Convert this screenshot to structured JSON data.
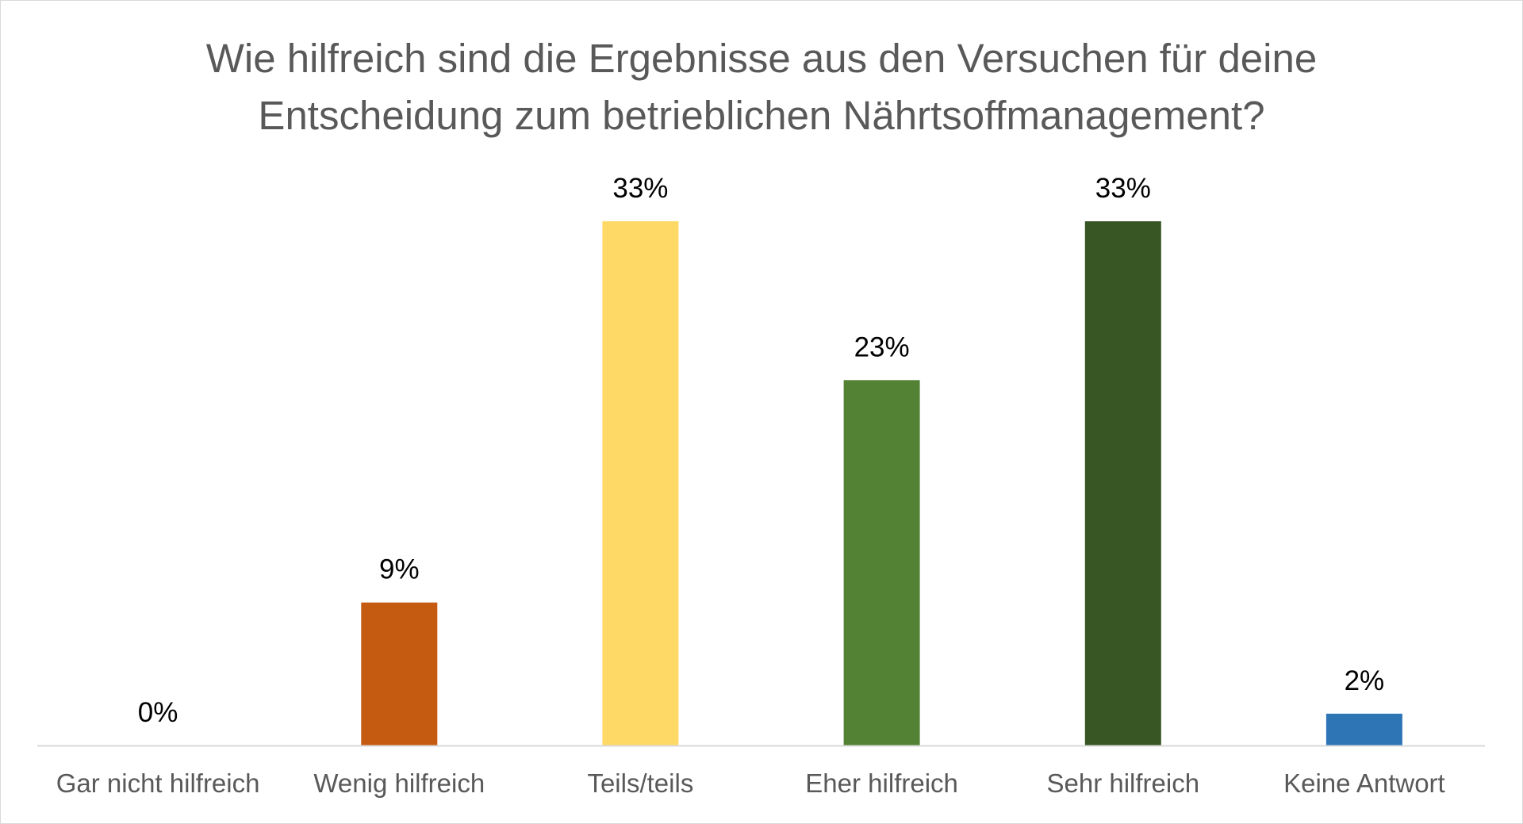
{
  "chart_data": {
    "type": "bar",
    "title_lines": [
      "Wie hilfreich sind die Ergebnisse aus den Versuchen für deine",
      "Entscheidung zum betrieblichen Nährtsoffmanagement?"
    ],
    "categories": [
      "Gar nicht hilfreich",
      "Wenig hilfreich",
      "Teils/teils",
      "Eher hilfreich",
      "Sehr hilfreich",
      "Keine Antwort"
    ],
    "values": [
      0,
      9,
      33,
      23,
      33,
      2
    ],
    "data_labels": [
      "0%",
      "9%",
      "33%",
      "23%",
      "33%",
      "2%"
    ],
    "unit": "%",
    "ylim": [
      0,
      33
    ],
    "colors": [
      "#c55a11",
      "#c55a11",
      "#ffd966",
      "#548235",
      "#375623",
      "#2e75b6"
    ],
    "grid": false,
    "legend": "none",
    "axis_color": "#d9d9d9"
  }
}
